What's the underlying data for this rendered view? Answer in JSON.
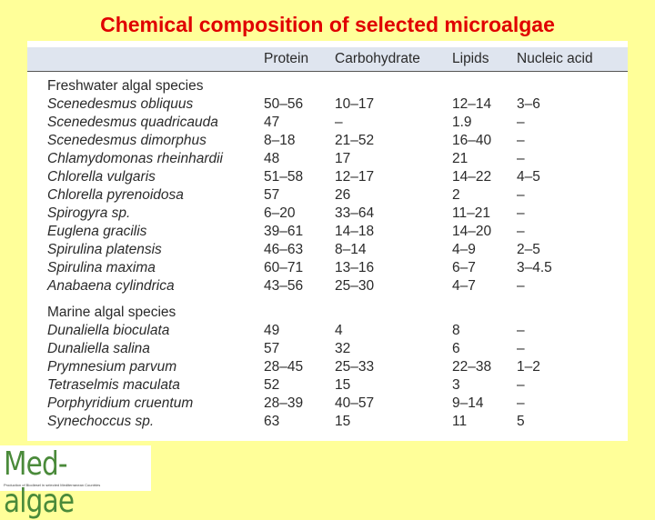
{
  "title": "Chemical composition of selected microalgae",
  "table": {
    "header": [
      "",
      "Protein",
      "Carbohydrate",
      "Lipids",
      "Nucleic acid"
    ],
    "sections": [
      {
        "title": "Freshwater algal species",
        "rows": [
          [
            "Scenedesmus obliquus",
            "50–56",
            "10–17",
            "12–14",
            "3–6"
          ],
          [
            "Scenedesmus quadricauda",
            "47",
            "–",
            "1.9",
            "–"
          ],
          [
            "Scenedesmus dimorphus",
            "8–18",
            "21–52",
            "16–40",
            "–"
          ],
          [
            "Chlamydomonas rheinhardii",
            "48",
            "17",
            "21",
            "–"
          ],
          [
            "Chlorella vulgaris",
            "51–58",
            "12–17",
            "14–22",
            "4–5"
          ],
          [
            "Chlorella pyrenoidosa",
            "57",
            "26",
            "2",
            "–"
          ],
          [
            "Spirogyra sp.",
            "6–20",
            "33–64",
            "11–21",
            "–"
          ],
          [
            "Euglena gracilis",
            "39–61",
            "14–18",
            "14–20",
            "–"
          ],
          [
            "Spirulina platensis",
            "46–63",
            "8–14",
            "4–9",
            "2–5"
          ],
          [
            "Spirulina maxima",
            "60–71",
            "13–16",
            "6–7",
            "3–4.5"
          ],
          [
            "Anabaena cylindrica",
            "43–56",
            "25–30",
            "4–7",
            "–"
          ]
        ]
      },
      {
        "title": "Marine algal species",
        "rows": [
          [
            "Dunaliella bioculata",
            "49",
            "4",
            "8",
            "–"
          ],
          [
            "Dunaliella salina",
            "57",
            "32",
            "6",
            "–"
          ],
          [
            "Prymnesium parvum",
            "28–45",
            "25–33",
            "22–38",
            "1–2"
          ],
          [
            "Tetraselmis maculata",
            "52",
            "15",
            "3",
            "–"
          ],
          [
            "Porphyridium cruentum",
            "28–39",
            "40–57",
            "9–14",
            "–"
          ],
          [
            "Synechoccus sp.",
            "63",
            "15",
            "11",
            "5"
          ]
        ]
      }
    ]
  },
  "logo": {
    "name": "Med-algae",
    "subtitle": "Production of Biodiesel in selected Mediterranean Countries"
  }
}
